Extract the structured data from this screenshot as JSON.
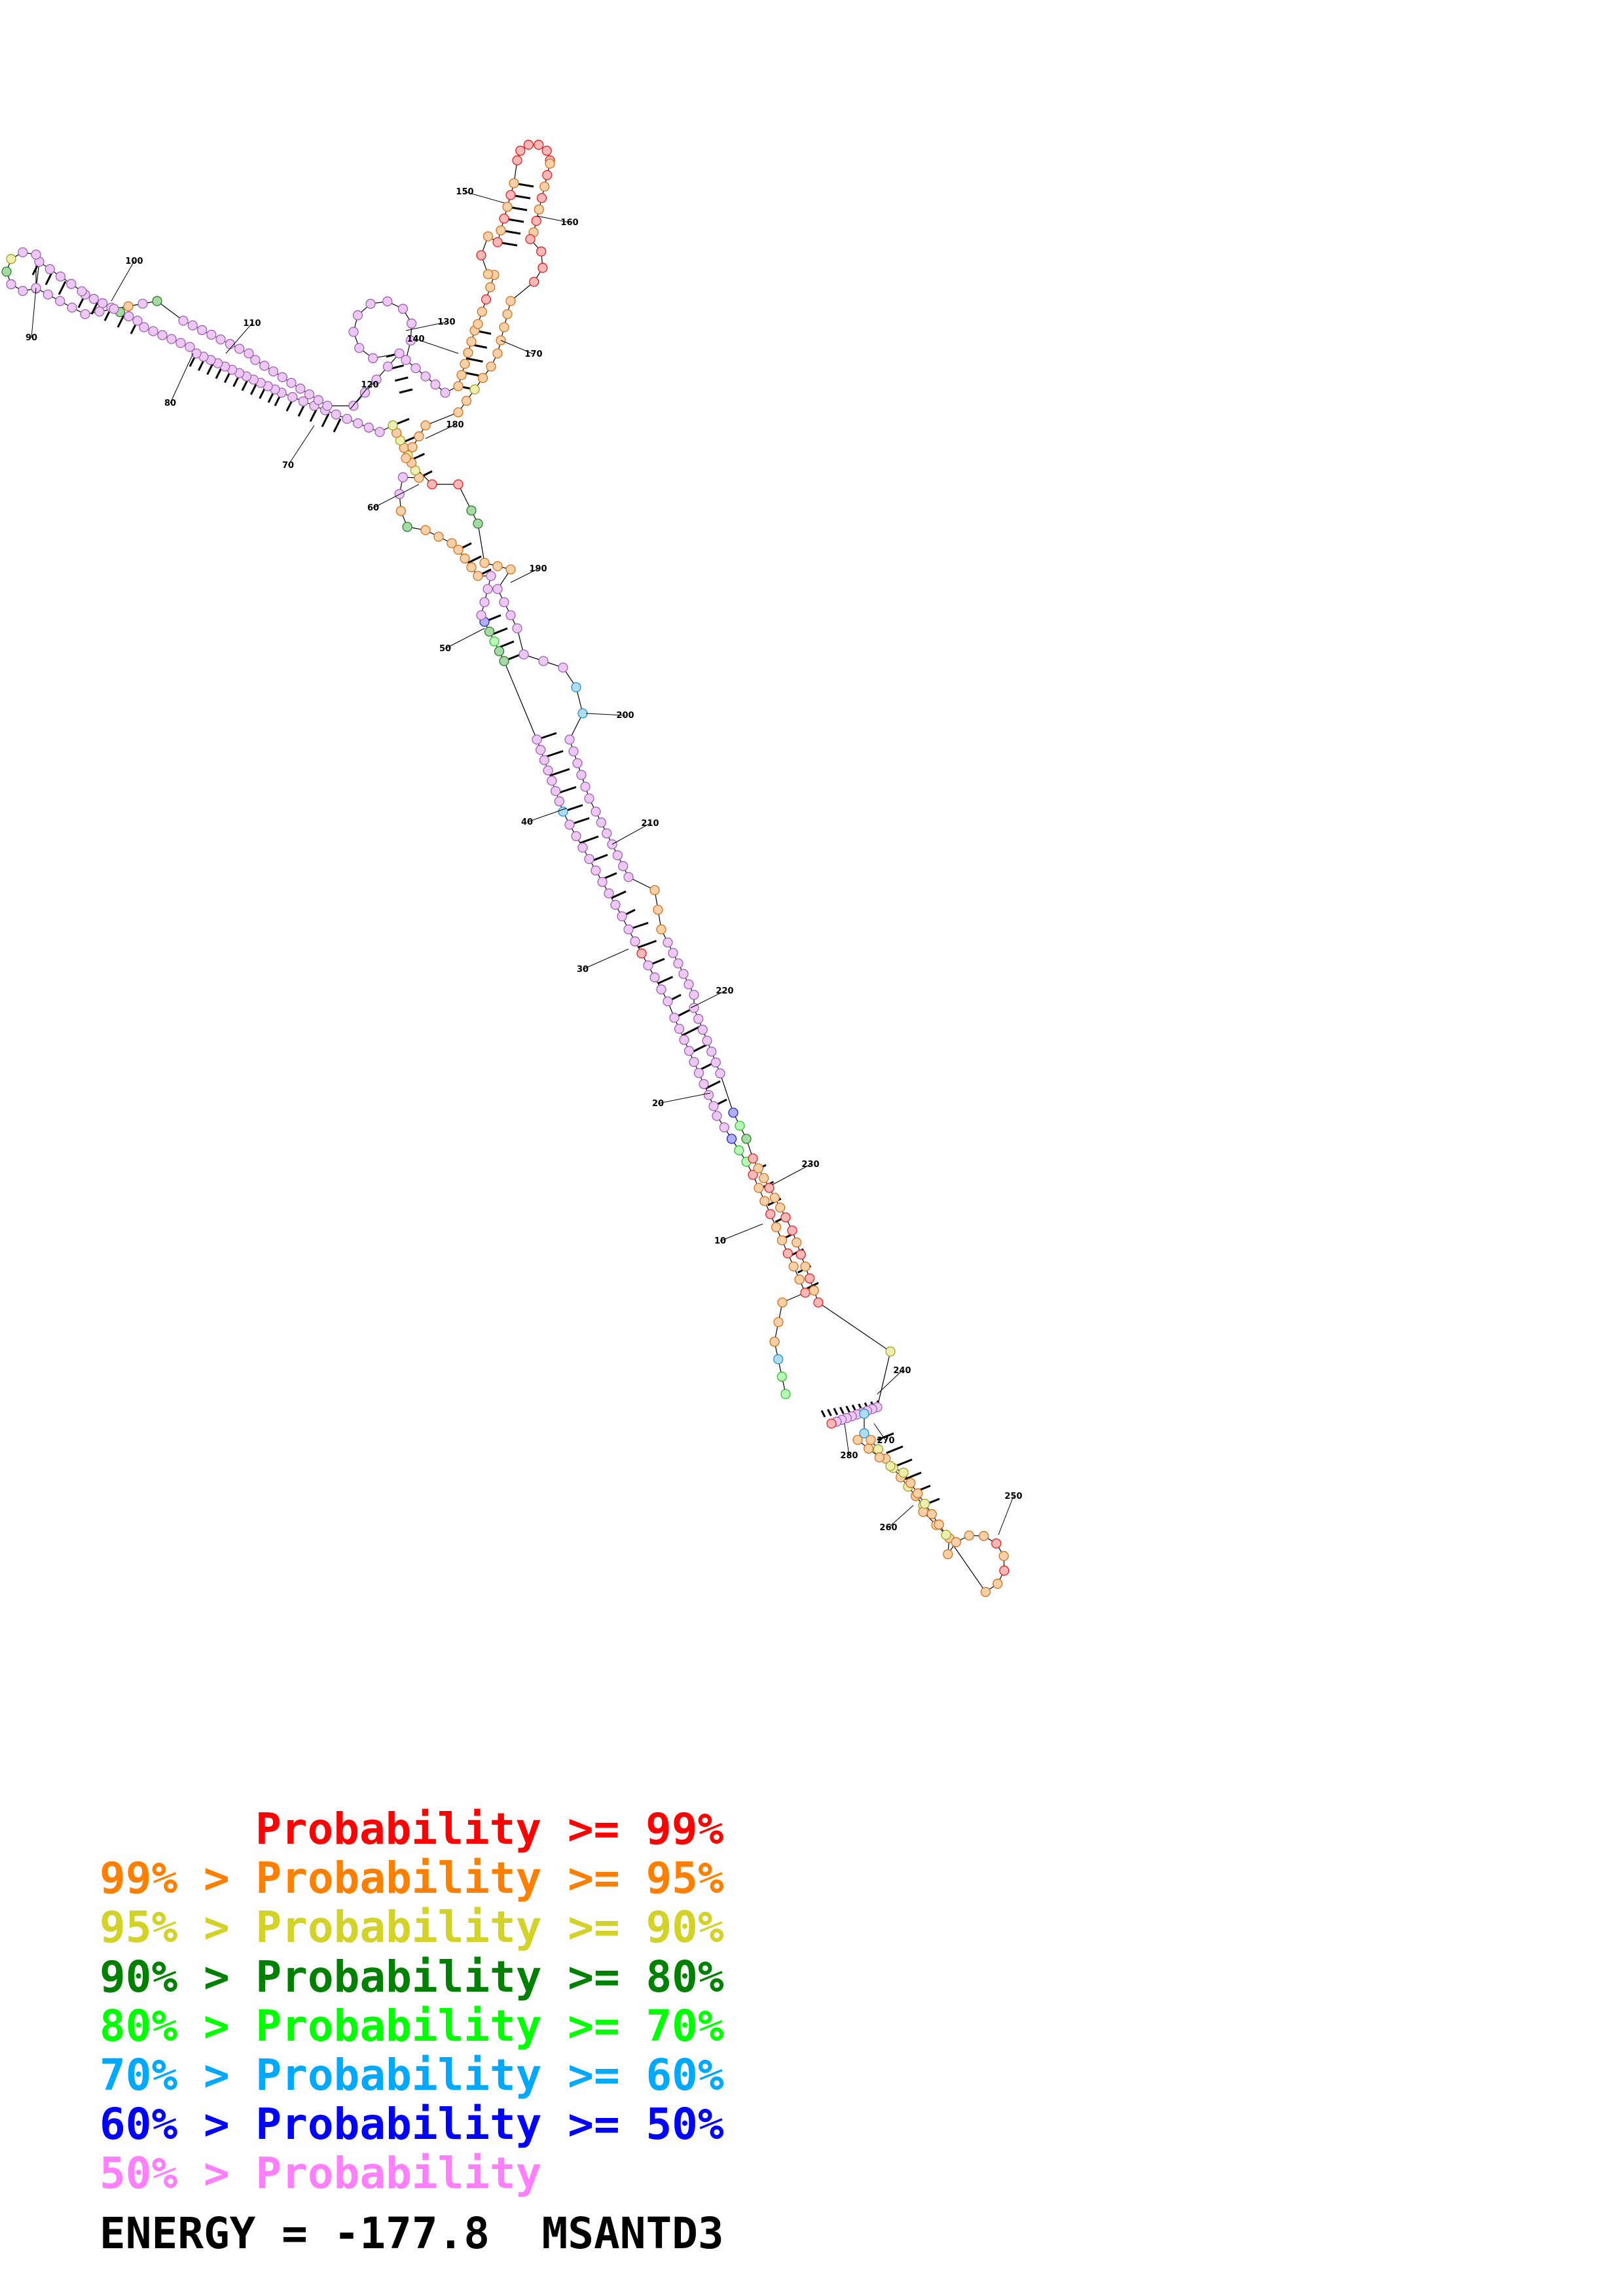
{
  "legend": {
    "entries": [
      {
        "label": "Probability >= 99%",
        "color": "#ff0000"
      },
      {
        "label": "99% > Probability >= 95%",
        "color": "#ff8000"
      },
      {
        "label": "95% > Probability >= 90%",
        "color": "#d2d228"
      },
      {
        "label": "90% > Probability >= 80%",
        "color": "#008000"
      },
      {
        "label": "80% > Probability >= 70%",
        "color": "#00ff00"
      },
      {
        "label": "70% > Probability >= 60%",
        "color": "#00a8ff"
      },
      {
        "label": "60% > Probability >= 50%",
        "color": "#0000ff"
      },
      {
        "label": "50% > Probability",
        "color": "#ff80ff"
      }
    ],
    "energy": "ENERGY = -177.8  MSANTD3"
  },
  "structure": {
    "tick_labels": [
      "10",
      "20",
      "30",
      "40",
      "50",
      "60",
      "70",
      "80",
      "90",
      "100",
      "110",
      "120",
      "130",
      "140",
      "150",
      "160",
      "170",
      "180",
      "190",
      "200",
      "210",
      "220",
      "230",
      "240",
      "250",
      "260",
      "270",
      "280"
    ],
    "fill_colors": {
      "p99": "#f8b8b8",
      "p95": "#f8d0a8",
      "p90": "#eeeeb0",
      "p80": "#a8d8a8",
      "p70": "#b8f8b8",
      "p60": "#b0dcf4",
      "p50": "#b0b0f8",
      "p_low": "#ecc8f4"
    }
  }
}
